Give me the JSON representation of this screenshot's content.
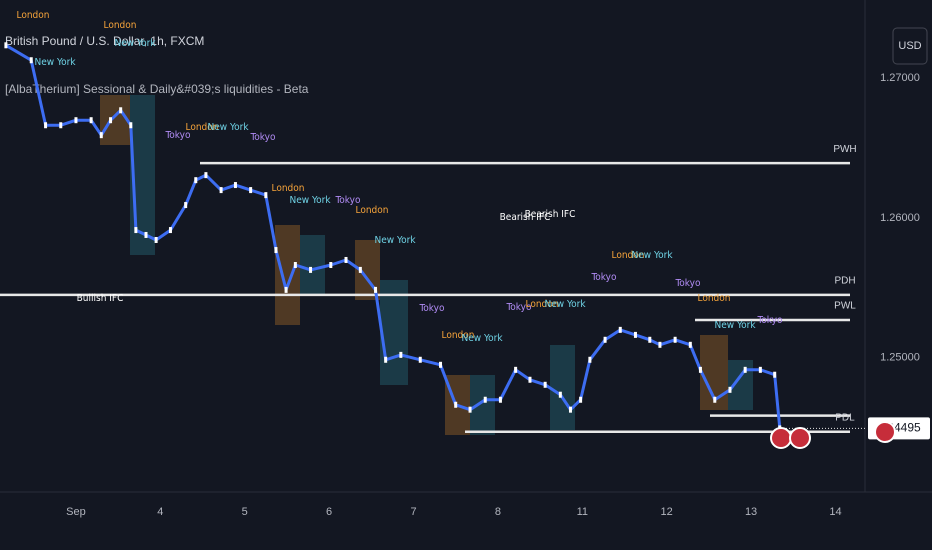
{
  "chart_data": {
    "type": "line",
    "title": "British Pound / U.S. Dollar, 1h, FXCM",
    "subtitle": "[AlbaTherium] Sessional & Daily&#039;s liquidities - Beta",
    "currency": "USD",
    "color": "#3d6df2",
    "x": [
      -0.83,
      -0.53,
      -0.36,
      -0.18,
      0,
      0.18,
      0.3,
      0.41,
      0.53,
      0.65,
      0.71,
      0.83,
      0.95,
      1.12,
      1.3,
      1.42,
      1.54,
      1.72,
      1.89,
      2.07,
      2.25,
      2.37,
      2.49,
      2.6,
      2.78,
      3.02,
      3.2,
      3.37,
      3.55,
      3.67,
      3.85,
      4.08,
      4.32,
      4.5,
      4.67,
      4.85,
      5.03,
      5.21,
      5.38,
      5.56,
      5.74,
      5.86,
      5.98,
      6.09,
      6.27,
      6.45,
      6.63,
      6.8,
      6.92,
      7.1,
      7.28,
      7.4,
      7.57,
      7.75,
      7.93,
      8.11,
      8.28,
      8.34
    ],
    "values": [
      1.27236,
      1.27129,
      1.26664,
      1.26664,
      1.267,
      1.267,
      1.26593,
      1.267,
      1.26771,
      1.26664,
      1.25914,
      1.25879,
      1.25843,
      1.25914,
      1.26093,
      1.26271,
      1.26307,
      1.262,
      1.26236,
      1.262,
      1.26164,
      1.25771,
      1.25486,
      1.25664,
      1.25629,
      1.25664,
      1.257,
      1.25629,
      1.25486,
      1.24986,
      1.25021,
      1.24986,
      1.2495,
      1.24664,
      1.24629,
      1.247,
      1.247,
      1.24914,
      1.24843,
      1.24807,
      1.24736,
      1.24629,
      1.247,
      1.24986,
      1.25129,
      1.252,
      1.25164,
      1.25129,
      1.25093,
      1.25129,
      1.25093,
      1.24914,
      1.247,
      1.24771,
      1.24914,
      1.24914,
      1.24879,
      1.24495
    ],
    "xlim": [
      -0.9,
      9.35
    ],
    "xticks": [
      {
        "value": 0,
        "label": "Sep"
      },
      {
        "value": 1,
        "label": "4"
      },
      {
        "value": 2,
        "label": "5"
      },
      {
        "value": 3,
        "label": "6"
      },
      {
        "value": 4,
        "label": "7"
      },
      {
        "value": 5,
        "label": "8"
      },
      {
        "value": 6,
        "label": "11"
      },
      {
        "value": 7,
        "label": "12"
      },
      {
        "value": 8,
        "label": "13"
      },
      {
        "value": 9,
        "label": "14"
      }
    ],
    "ylim": [
      1.2404,
      1.2756
    ],
    "yticks": [
      {
        "value": 1.27,
        "label": "1.27000"
      },
      {
        "value": 1.26,
        "label": "1.26000"
      },
      {
        "value": 1.25,
        "label": "1.25000"
      }
    ],
    "last_price": 1.24495,
    "levels": [
      {
        "label": "PWH",
        "value": 1.26393
      },
      {
        "label": "PDH",
        "value": 1.2545
      },
      {
        "label": "PWL",
        "value": 1.25271
      },
      {
        "label": null,
        "value": 1.24586
      },
      {
        "label": "PDL",
        "value": 1.24471
      }
    ],
    "annotations": [
      "Bullish IFC",
      "Bearish IFC",
      "Bearish IFC"
    ],
    "session_colors": {
      "London": "#f5a33a",
      "New York": "#6fd3e6",
      "Tokyo": "#b18cf5"
    },
    "sessions": [
      "London",
      "London",
      "New York",
      "New York",
      "Tokyo",
      "London",
      "New York",
      "Tokyo",
      "London",
      "New York",
      "Tokyo",
      "London",
      "New York",
      "Tokyo",
      "London",
      "New York",
      "Tokyo",
      "London",
      "New York",
      "Tokyo",
      "London",
      "New York",
      "Tokyo",
      "London",
      "New York",
      "Tokyo"
    ]
  }
}
